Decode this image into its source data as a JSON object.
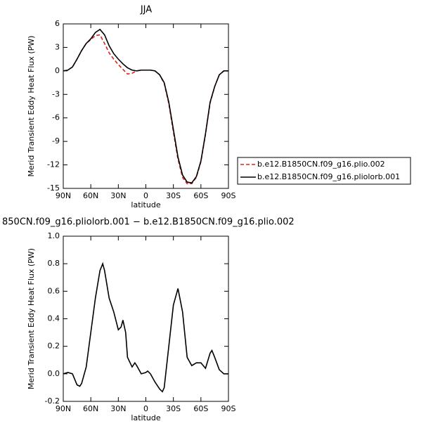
{
  "chart_data": [
    {
      "type": "line",
      "title": "JJA",
      "x_label": "latitude",
      "y_label": "Merid Transient Eddy Heat Flux (PW)",
      "x": [
        90,
        85,
        80,
        75,
        70,
        65,
        60,
        55,
        50,
        45,
        40,
        35,
        30,
        25,
        20,
        15,
        10,
        5,
        0,
        -5,
        -10,
        -15,
        -20,
        -25,
        -30,
        -35,
        -40,
        -45,
        -50,
        -55,
        -60,
        -65,
        -70,
        -75,
        -80,
        -85,
        -90
      ],
      "series": [
        {
          "name": "b.e12.B1850CN.f09_g16.plio.002",
          "color": "#e0201b",
          "dashed": true,
          "values": [
            0,
            0.1,
            0.5,
            1.5,
            2.6,
            3.5,
            4.0,
            4.5,
            4.6,
            3.5,
            2.3,
            1.5,
            0.8,
            0.2,
            -0.4,
            -0.3,
            0,
            0.1,
            0.1,
            0.1,
            0,
            -0.5,
            -1.6,
            -4.2,
            -7.8,
            -11.3,
            -13.6,
            -14.4,
            -14.4,
            -13.6,
            -11.6,
            -8.1,
            -4.1,
            -2.0,
            -0.5,
            0,
            0
          ]
        },
        {
          "name": "b.e12.B1850CN.f09_g16.pliolorb.001",
          "color": "#000000",
          "dashed": false,
          "values": [
            0,
            0.1,
            0.5,
            1.5,
            2.6,
            3.5,
            4.1,
            4.9,
            5.3,
            4.6,
            3.2,
            2.2,
            1.5,
            0.9,
            0.4,
            0.1,
            0,
            0.1,
            0.1,
            0.1,
            0,
            -0.5,
            -1.5,
            -4.0,
            -7.5,
            -11.0,
            -13.3,
            -14.2,
            -14.3,
            -13.5,
            -11.5,
            -8.0,
            -4.0,
            -2.0,
            -0.5,
            0,
            0
          ]
        }
      ],
      "xlim": [
        90,
        -90
      ],
      "ylim": [
        -15,
        6
      ],
      "xticks": [
        {
          "value": 90,
          "label": "90N"
        },
        {
          "value": 60,
          "label": "60N"
        },
        {
          "value": 30,
          "label": "30N"
        },
        0,
        {
          "value": -30,
          "label": "30S"
        },
        {
          "value": -60,
          "label": "60S"
        },
        {
          "value": -90,
          "label": "90S"
        }
      ],
      "yticks": [
        6,
        3,
        0,
        -3,
        -6,
        -9,
        -12,
        -15
      ],
      "legend": "right"
    },
    {
      "type": "line",
      "title": "850CN.f09_g16.pliolorb.001 − b.e12.B1850CN.f09_g16.plio.002",
      "x_label": "latitude",
      "y_label": "Merid Transient Eddy Heat Flux (PW)",
      "x": [
        90,
        85,
        80,
        75,
        72,
        70,
        65,
        60,
        55,
        50,
        47,
        45,
        40,
        35,
        30,
        27,
        25,
        22,
        20,
        15,
        12,
        10,
        5,
        0,
        -2,
        -5,
        -10,
        -15,
        -18,
        -20,
        -25,
        -30,
        -35,
        -40,
        -45,
        -50,
        -55,
        -60,
        -65,
        -70,
        -72,
        -75,
        -80,
        -85,
        -90
      ],
      "values": [
        0,
        0.01,
        0.0,
        -0.08,
        -0.09,
        -0.07,
        0.05,
        0.3,
        0.55,
        0.75,
        0.8,
        0.75,
        0.55,
        0.45,
        0.32,
        0.34,
        0.39,
        0.3,
        0.12,
        0.05,
        0.08,
        0.06,
        0.0,
        0.01,
        0.02,
        0.0,
        -0.06,
        -0.11,
        -0.13,
        -0.1,
        0.2,
        0.5,
        0.62,
        0.45,
        0.12,
        0.06,
        0.08,
        0.08,
        0.04,
        0.15,
        0.17,
        0.12,
        0.03,
        0.0,
        0
      ],
      "color": "#000000",
      "xlim": [
        90,
        -90
      ],
      "ylim": [
        -0.2,
        1.0
      ],
      "xticks": [
        {
          "value": 90,
          "label": "90N"
        },
        {
          "value": 60,
          "label": "60N"
        },
        {
          "value": 30,
          "label": "30N"
        },
        0,
        {
          "value": -30,
          "label": "30S"
        },
        {
          "value": -60,
          "label": "60S"
        },
        {
          "value": -90,
          "label": "90S"
        }
      ],
      "yticks": [
        {
          "value": 1.0,
          "label": "1.0"
        },
        0.8,
        0.6,
        0.4,
        0.2,
        {
          "value": 0.0,
          "label": "0.0"
        },
        -0.2
      ]
    }
  ]
}
